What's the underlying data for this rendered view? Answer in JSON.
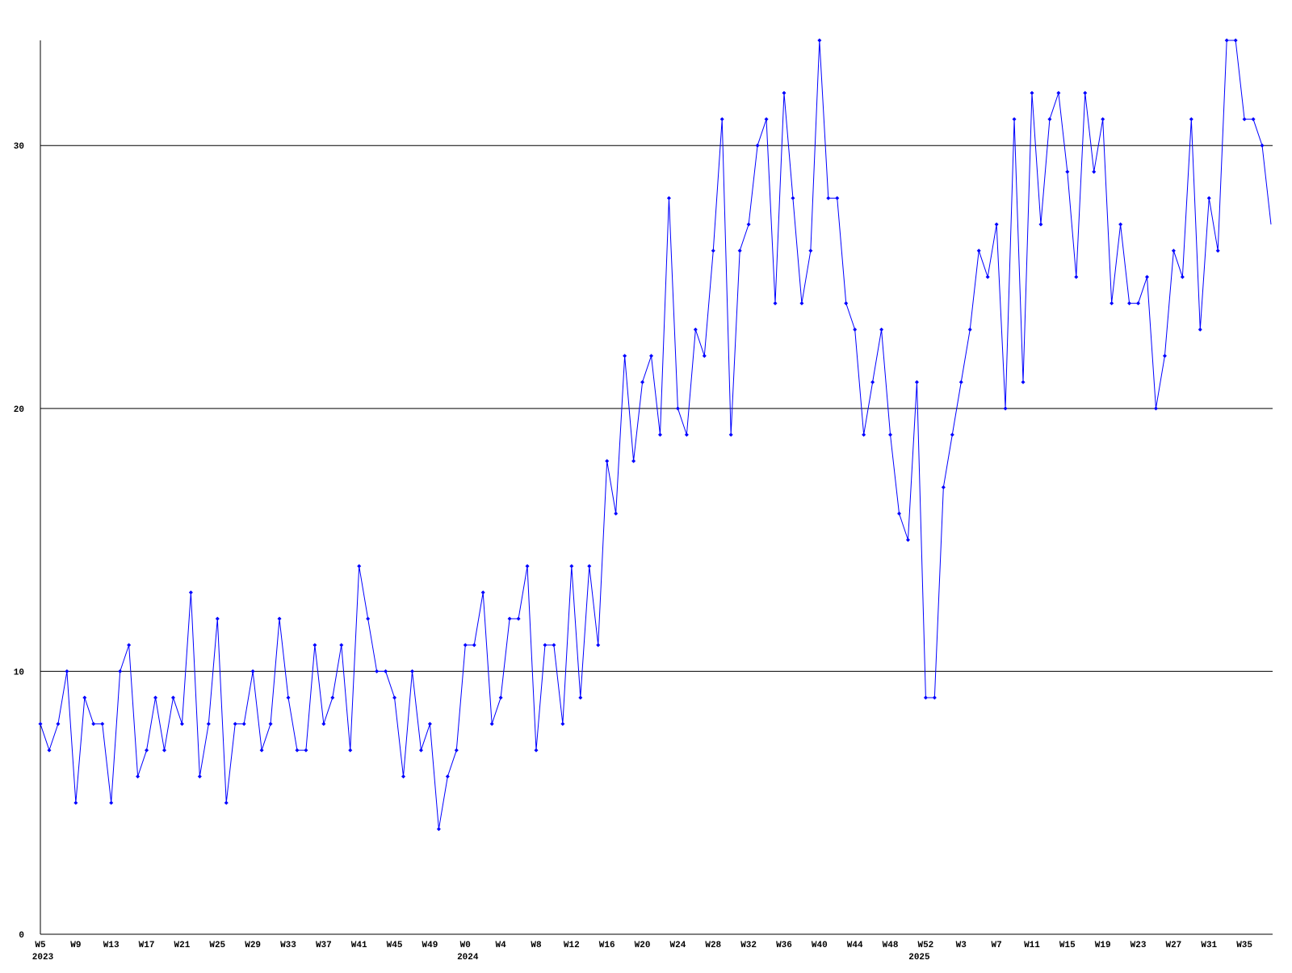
{
  "chart_data": {
    "type": "line",
    "categories": [
      "W5",
      null,
      null,
      null,
      "W9",
      null,
      null,
      null,
      "W13",
      null,
      null,
      null,
      "W17",
      null,
      null,
      null,
      "W21",
      null,
      null,
      null,
      "W25",
      null,
      null,
      null,
      "W29",
      null,
      null,
      null,
      "W33",
      null,
      null,
      null,
      "W37",
      null,
      null,
      null,
      "W41",
      null,
      null,
      null,
      "W45",
      null,
      null,
      null,
      "W49",
      null,
      null,
      null,
      "W0",
      null,
      null,
      null,
      "W4",
      null,
      null,
      null,
      "W8",
      null,
      null,
      null,
      "W12",
      null,
      null,
      null,
      "W16",
      null,
      null,
      null,
      "W20",
      null,
      null,
      null,
      "W24",
      null,
      null,
      null,
      "W28",
      null,
      null,
      null,
      "W32",
      null,
      null,
      null,
      "W36",
      null,
      null,
      null,
      "W40",
      null,
      null,
      null,
      "W44",
      null,
      null,
      null,
      "W48",
      null,
      null,
      null,
      "W52",
      null,
      null,
      null,
      "W3",
      null,
      null,
      null,
      "W7",
      null,
      null,
      null,
      "W11",
      null,
      null,
      null,
      "W15",
      null,
      null,
      null,
      "W19",
      null,
      null,
      null,
      "W23",
      null,
      null,
      null,
      "W27",
      null,
      null,
      null,
      "W31",
      null,
      null,
      null,
      "W35",
      null,
      null,
      null
    ],
    "category_years": [
      "2023",
      null,
      null,
      null,
      null,
      null,
      null,
      null,
      null,
      null,
      null,
      null,
      null,
      null,
      null,
      null,
      null,
      null,
      null,
      null,
      null,
      null,
      null,
      null,
      null,
      null,
      null,
      null,
      null,
      null,
      null,
      null,
      null,
      null,
      null,
      null,
      null,
      null,
      null,
      null,
      null,
      null,
      null,
      null,
      null,
      null,
      null,
      null,
      "2024",
      null,
      null,
      null,
      null,
      null,
      null,
      null,
      null,
      null,
      null,
      null,
      null,
      null,
      null,
      null,
      null,
      null,
      null,
      null,
      null,
      null,
      null,
      null,
      null,
      null,
      null,
      null,
      null,
      null,
      null,
      null,
      null,
      null,
      null,
      null,
      null,
      null,
      null,
      null,
      null,
      null,
      null,
      null,
      null,
      null,
      null,
      null,
      null,
      null,
      null,
      "2025",
      null,
      null,
      null,
      null,
      null,
      null,
      null,
      null,
      null,
      null,
      null,
      null,
      null,
      null,
      null,
      null,
      null,
      null,
      null,
      null,
      null,
      null,
      null,
      null,
      null,
      null,
      null,
      null,
      null,
      null,
      null,
      null,
      null,
      null,
      null,
      null,
      null,
      null
    ],
    "series": [
      {
        "color": "#0000ff",
        "values": [
          8,
          7,
          8,
          10,
          5,
          9,
          8,
          8,
          5,
          10,
          11,
          6,
          7,
          9,
          7,
          9,
          8,
          13,
          6,
          8,
          12,
          5,
          8,
          8,
          10,
          7,
          8,
          12,
          9,
          7,
          7,
          11,
          8,
          9,
          11,
          7,
          14,
          12,
          10,
          10,
          9,
          6,
          10,
          7,
          8,
          4,
          6,
          7,
          11,
          11,
          13,
          8,
          9,
          12,
          12,
          14,
          7,
          11,
          11,
          8,
          14,
          9,
          14,
          11,
          18,
          16,
          22,
          18,
          21,
          22,
          19,
          28,
          20,
          19,
          23,
          22,
          26,
          31,
          19,
          26,
          27,
          30,
          31,
          24,
          32,
          28,
          24,
          26,
          34,
          28,
          28,
          24,
          23,
          19,
          21,
          23,
          19,
          16,
          15,
          21,
          9,
          9,
          17,
          19,
          21,
          23,
          26,
          25,
          27,
          20,
          31,
          21,
          32,
          27,
          31,
          32,
          29,
          25,
          32,
          29,
          31,
          24,
          27,
          24,
          24,
          25,
          20,
          22,
          26,
          25,
          31,
          23,
          28,
          26,
          34,
          34,
          31,
          31,
          30,
          27
        ]
      }
    ],
    "ylim": [
      0,
      34
    ],
    "yticks": [
      0,
      10,
      20,
      30
    ],
    "grid": true
  }
}
